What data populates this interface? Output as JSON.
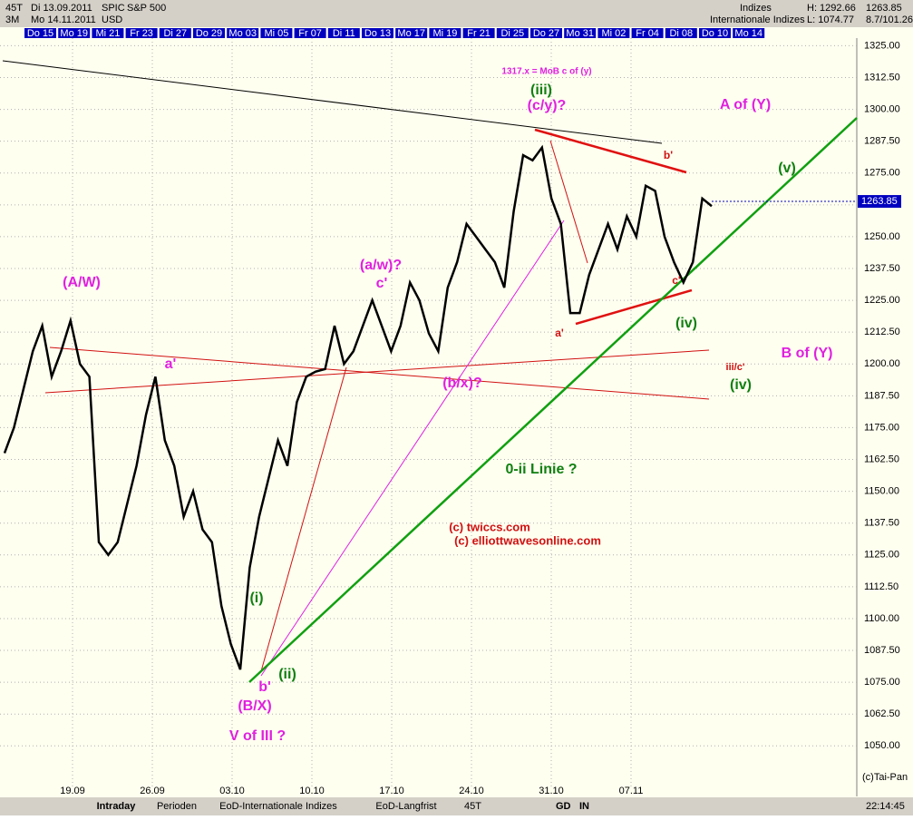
{
  "header": {
    "period": "45T",
    "from": "Di 13.09.2011",
    "symbol": "SPIC",
    "name": "S&P 500",
    "range": "3M",
    "to": "Mo 14.11.2011",
    "currency": "USD",
    "group": "Indizes",
    "group2": "Internationale Indizes",
    "high": "H: 1292.66",
    "low": "L: 1074.77",
    "last": "1263.85",
    "ratio": "8.7/101.26"
  },
  "top_dates": [
    "Do 15",
    "Mo 19",
    "Mi 21",
    "Fr 23",
    "Di 27",
    "Do 29",
    "Mo 03",
    "Mi 05",
    "Fr 07",
    "Di 11",
    "Do 13",
    "Mo 17",
    "Mi 19",
    "Fr 21",
    "Di 25",
    "Do 27",
    "Mo 31",
    "Mi 02",
    "Fr 04",
    "Di 08",
    "Do 10",
    "Mo 14"
  ],
  "chart_data": {
    "type": "line",
    "color": "#000000",
    "values": [
      1165,
      1175,
      1190,
      1205,
      1215,
      1195,
      1205,
      1217,
      1200,
      1195,
      1130,
      1125,
      1130,
      1145,
      1160,
      1180,
      1195,
      1170,
      1160,
      1140,
      1150,
      1135,
      1130,
      1105,
      1090,
      1080,
      1120,
      1140,
      1155,
      1170,
      1160,
      1185,
      1195,
      1197,
      1198,
      1215,
      1200,
      1205,
      1215,
      1225,
      1215,
      1205,
      1215,
      1232,
      1225,
      1212,
      1205,
      1230,
      1240,
      1255,
      1250,
      1245,
      1240,
      1230,
      1260,
      1282,
      1280,
      1285,
      1265,
      1255,
      1220,
      1220,
      1235,
      1245,
      1255,
      1245,
      1258,
      1250,
      1270,
      1268,
      1250,
      1240,
      1232,
      1240,
      1265,
      1262
    ],
    "last_price": 1263.85,
    "xticks": [
      "19.09",
      "26.09",
      "03.10",
      "10.10",
      "17.10",
      "24.10",
      "31.10",
      "07.11"
    ],
    "ylim": [
      1033,
      1328
    ],
    "yticks": [
      {
        "value": 1050,
        "label": "1050.00"
      },
      {
        "value": 1062.5,
        "label": "1062.50"
      },
      {
        "value": 1075,
        "label": "1075.00"
      },
      {
        "value": 1087.5,
        "label": "1087.50"
      },
      {
        "value": 1100,
        "label": "1100.00"
      },
      {
        "value": 1112.5,
        "label": "1112.50"
      },
      {
        "value": 1125,
        "label": "1125.00"
      },
      {
        "value": 1137.5,
        "label": "1137.50"
      },
      {
        "value": 1150,
        "label": "1150.00"
      },
      {
        "value": 1162.5,
        "label": "1162.50"
      },
      {
        "value": 1175,
        "label": "1175.00"
      },
      {
        "value": 1187.5,
        "label": "1187.50"
      },
      {
        "value": 1200,
        "label": "1200.00"
      },
      {
        "value": 1212.5,
        "label": "1212.50"
      },
      {
        "value": 1225,
        "label": "1225.00"
      },
      {
        "value": 1237.5,
        "label": "1237.50"
      },
      {
        "value": 1250,
        "label": "1250.00"
      },
      {
        "value": 1262.5,
        "label": "1262.50"
      },
      {
        "value": 1275,
        "label": "1275.00"
      },
      {
        "value": 1287.5,
        "label": "1287.50"
      },
      {
        "value": 1300,
        "label": "1300.00"
      },
      {
        "value": 1312.5,
        "label": "1312.50"
      },
      {
        "value": 1325,
        "label": "1325.00"
      }
    ],
    "grid": true,
    "annotations": [
      "1317.x = MoB c of (y)",
      "(iii)",
      "(c/y)?",
      "A of (Y)",
      "(v)",
      "b'",
      "(A/W)",
      "(a/w)?",
      "c'",
      "a'",
      "(b/x)?",
      "a'",
      "c'",
      "(iv)",
      "B of (Y)",
      "iii/c'",
      "(iv)",
      "0-ii Linie ?",
      "(c) twiccs.com",
      "(c) elliottwavesonline.com",
      "(i)",
      "b'",
      "(ii)",
      "(B/X)",
      "V of III ?"
    ]
  },
  "credit": "(c)Tai-Pan",
  "toolbar": {
    "tab1": "Intraday",
    "tab2": "Perioden",
    "tab3": "EoD-Internationale Indizes",
    "tab4": "EoD-Langfrist",
    "period": "45T",
    "gd": "GD",
    "in": "IN",
    "time": "22:14:45"
  }
}
